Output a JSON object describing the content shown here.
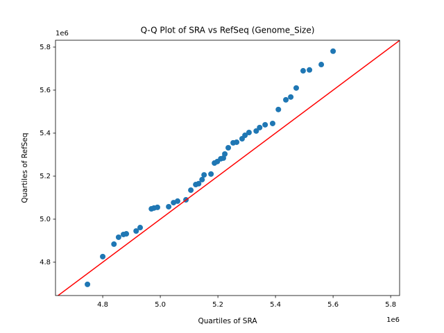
{
  "chart_data": {
    "type": "scatter",
    "title": "Q-Q Plot of SRA vs RefSeq (Genome_Size)",
    "x_label": "Quartiles of SRA",
    "y_label": "Quartiles of RefSeq",
    "x_offset_text": "1e6",
    "y_offset_text": "1e6",
    "color": "#1f77b4",
    "reference_line_color": "#ff0000",
    "xlim": [
      4.636,
      5.831
    ],
    "ylim": [
      4.645,
      5.832
    ],
    "xticks": [
      4.8,
      {
        "value": 5,
        "label": "5.0"
      },
      5.2,
      5.4,
      5.6,
      5.8
    ],
    "yticks": [
      4.8,
      {
        "value": 5,
        "label": "5.0"
      },
      5.2,
      5.4,
      5.6,
      5.8
    ],
    "grid": false,
    "x": [
      4.747,
      4.8,
      4.839,
      4.855,
      4.872,
      4.882,
      4.916,
      4.93,
      4.969,
      4.978,
      4.99,
      5.029,
      5.046,
      5.06,
      5.089,
      5.106,
      5.123,
      5.133,
      5.145,
      5.152,
      5.176,
      5.188,
      5.198,
      5.21,
      5.219,
      5.224,
      5.236,
      5.253,
      5.265,
      5.284,
      5.294,
      5.308,
      5.333,
      5.345,
      5.364,
      5.39,
      5.41,
      5.436,
      5.453,
      5.472,
      5.496,
      5.518,
      5.559,
      5.6
    ],
    "values": [
      4.697,
      4.826,
      4.884,
      4.916,
      4.929,
      4.932,
      4.945,
      4.961,
      5.048,
      5.052,
      5.055,
      5.058,
      5.077,
      5.084,
      5.09,
      5.135,
      5.161,
      5.165,
      5.184,
      5.206,
      5.21,
      5.261,
      5.268,
      5.281,
      5.284,
      5.303,
      5.332,
      5.355,
      5.358,
      5.374,
      5.39,
      5.403,
      5.41,
      5.426,
      5.439,
      5.445,
      5.51,
      5.555,
      5.568,
      5.61,
      5.69,
      5.694,
      5.719,
      5.781
    ]
  }
}
